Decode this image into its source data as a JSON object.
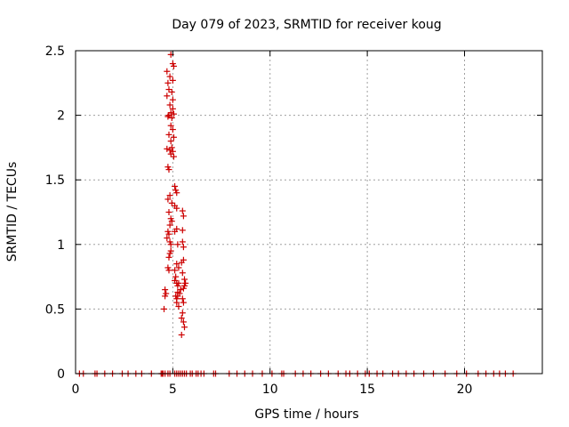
{
  "chart_data": {
    "type": "scatter",
    "title": "Day 079 of 2023, SRMTID for receiver koug",
    "xlabel": "GPS time / hours",
    "ylabel": "SRMTID / TECUs",
    "xlim": [
      0,
      24
    ],
    "ylim": [
      0,
      2.5
    ],
    "xticks": [
      0,
      5,
      10,
      15,
      20
    ],
    "yticks": [
      0,
      0.5,
      1,
      1.5,
      2,
      2.5
    ],
    "xtick_labels": [
      "0",
      "5",
      "10",
      "15",
      "20"
    ],
    "ytick_labels": [
      "0",
      "0.5",
      "1",
      "1.5",
      "2",
      "2.5"
    ],
    "grid": true,
    "marker": "plus",
    "color": "#cc0000",
    "series": [
      {
        "x": [
          4.9,
          5.0,
          4.7,
          5.05,
          4.85,
          5.0,
          4.75,
          4.8,
          4.95,
          5.0,
          4.7,
          4.85,
          5.0,
          4.9,
          4.8,
          5.05,
          4.95,
          4.75,
          4.9,
          5.0,
          4.8,
          5.05,
          4.9,
          4.95,
          4.7,
          4.85,
          5.0,
          4.9,
          5.05,
          4.75,
          4.8,
          5.1,
          5.15,
          5.2,
          4.85,
          4.75,
          4.95,
          5.1,
          5.2,
          5.5,
          5.55,
          4.8,
          4.9,
          4.95,
          4.85,
          5.2,
          5.1,
          5.5,
          4.75,
          4.8,
          4.7,
          4.85,
          4.9,
          5.25,
          5.5,
          5.55,
          4.9,
          4.85,
          4.8,
          5.2,
          5.3,
          5.55,
          5.45,
          4.75,
          4.8,
          5.1,
          5.15,
          5.5,
          5.6,
          5.65,
          5.1,
          5.2,
          5.25,
          5.4,
          5.55,
          5.6,
          5.35,
          5.25,
          5.2,
          4.6,
          4.65,
          4.6,
          5.2,
          5.3,
          5.5,
          5.55,
          5.5,
          5.45,
          5.55,
          5.6,
          4.55,
          5.3,
          5.15,
          5.25,
          5.45
        ],
        "y": [
          2.47,
          2.4,
          2.34,
          2.38,
          2.3,
          2.27,
          2.25,
          2.2,
          2.18,
          2.12,
          2.15,
          2.08,
          2.05,
          2.02,
          2.0,
          2.01,
          1.98,
          1.99,
          1.92,
          1.89,
          1.85,
          1.83,
          1.8,
          1.75,
          1.74,
          1.73,
          1.72,
          1.7,
          1.68,
          1.6,
          1.58,
          1.45,
          1.42,
          1.4,
          1.38,
          1.35,
          1.32,
          1.3,
          1.28,
          1.26,
          1.22,
          1.25,
          1.2,
          1.18,
          1.15,
          1.12,
          1.1,
          1.11,
          1.1,
          1.08,
          1.05,
          1.02,
          1.0,
          1.0,
          1.02,
          0.98,
          0.95,
          0.93,
          0.9,
          0.85,
          0.82,
          0.88,
          0.86,
          0.82,
          0.8,
          0.8,
          0.75,
          0.78,
          0.73,
          0.7,
          0.72,
          0.7,
          0.68,
          0.65,
          0.66,
          0.68,
          0.62,
          0.6,
          0.58,
          0.65,
          0.62,
          0.6,
          0.55,
          0.52,
          0.58,
          0.55,
          0.47,
          0.43,
          0.4,
          0.36,
          0.5,
          0.7,
          0.6,
          0.63,
          0.3
        ]
      },
      {
        "x": [
          0.2,
          0.4,
          1.0,
          1.1,
          1.5,
          1.9,
          2.4,
          2.7,
          3.1,
          3.4,
          3.9,
          4.4,
          4.45,
          4.5,
          4.6,
          4.75,
          4.85,
          5.1,
          5.2,
          5.3,
          5.4,
          5.5,
          5.6,
          5.7,
          5.9,
          6.0,
          6.2,
          6.3,
          6.45,
          6.6,
          7.1,
          7.2,
          7.9,
          8.3,
          8.7,
          9.1,
          9.6,
          10.1,
          10.6,
          10.7,
          11.3,
          11.7,
          12.1,
          12.6,
          13.0,
          13.5,
          13.9,
          14.1,
          14.5,
          14.9,
          15.1,
          15.5,
          15.8,
          16.3,
          16.6,
          17.0,
          17.4,
          17.9,
          18.4,
          19.0,
          19.6,
          20.1,
          20.7,
          21.1,
          21.5,
          21.8,
          22.1,
          22.5
        ],
        "y": [
          0,
          0,
          0,
          0,
          0,
          0,
          0,
          0,
          0,
          0,
          0,
          0,
          0,
          0,
          0,
          0,
          0,
          0,
          0,
          0,
          0,
          0,
          0,
          0,
          0,
          0,
          0,
          0,
          0,
          0,
          0,
          0,
          0,
          0,
          0,
          0,
          0,
          0,
          0,
          0,
          0,
          0,
          0,
          0,
          0,
          0,
          0,
          0,
          0,
          0,
          0,
          0,
          0,
          0,
          0,
          0,
          0,
          0,
          0,
          0,
          0,
          0,
          0,
          0,
          0,
          0,
          0,
          0
        ]
      }
    ]
  }
}
